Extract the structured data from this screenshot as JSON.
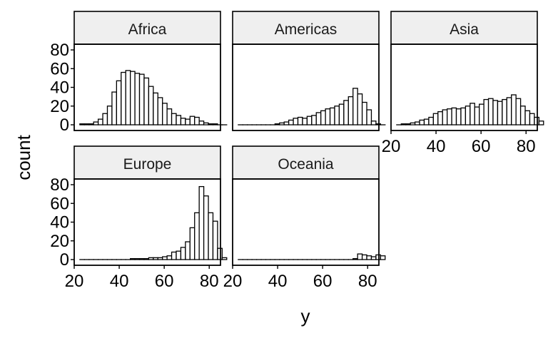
{
  "chart_data": {
    "type": "bar",
    "xlabel": "y",
    "ylabel": "count",
    "xlim": [
      20,
      85
    ],
    "ylim": [
      0,
      80
    ],
    "x_ticks": [
      20,
      40,
      60,
      80
    ],
    "y_ticks": [
      0,
      20,
      40,
      60,
      80
    ],
    "bin_start": 22.5,
    "bin_width": 2.04,
    "grid": false,
    "colors": {
      "bar_fill": "#ffffff",
      "bar_stroke": "#000000",
      "strip_fill": "#efefef"
    },
    "panels": [
      {
        "name": "Africa",
        "values": [
          1,
          1,
          1,
          3,
          6,
          12,
          20,
          35,
          47,
          56,
          58,
          57,
          55,
          54,
          50,
          41,
          34,
          29,
          23,
          17,
          12,
          10,
          7,
          6,
          9,
          8,
          4,
          2,
          1,
          1,
          0,
          0
        ]
      },
      {
        "name": "Americas",
        "values": [
          0,
          0,
          0,
          0,
          0,
          0,
          0,
          0,
          1,
          2,
          3,
          5,
          7,
          8,
          7,
          9,
          10,
          13,
          15,
          17,
          18,
          20,
          22,
          26,
          30,
          39,
          33,
          24,
          16,
          4,
          1,
          0
        ]
      },
      {
        "name": "Asia",
        "values": [
          0,
          1,
          1,
          2,
          3,
          5,
          6,
          8,
          12,
          14,
          16,
          17,
          18,
          17,
          18,
          20,
          23,
          19,
          22,
          27,
          28,
          26,
          25,
          27,
          29,
          32,
          28,
          20,
          15,
          12,
          8,
          4
        ]
      },
      {
        "name": "Europe",
        "values": [
          0,
          0,
          0,
          0,
          0,
          0,
          0,
          0,
          0,
          0,
          0,
          1,
          1,
          1,
          1,
          2,
          2,
          2,
          3,
          4,
          8,
          9,
          13,
          19,
          34,
          50,
          78,
          68,
          50,
          41,
          12,
          2
        ]
      },
      {
        "name": "Oceania",
        "values": [
          0,
          0,
          0,
          0,
          0,
          0,
          0,
          0,
          0,
          0,
          0,
          0,
          0,
          0,
          0,
          0,
          0,
          0,
          0,
          0,
          0,
          0,
          0,
          0,
          0,
          1,
          6,
          5,
          4,
          3,
          5,
          4
        ]
      }
    ]
  }
}
